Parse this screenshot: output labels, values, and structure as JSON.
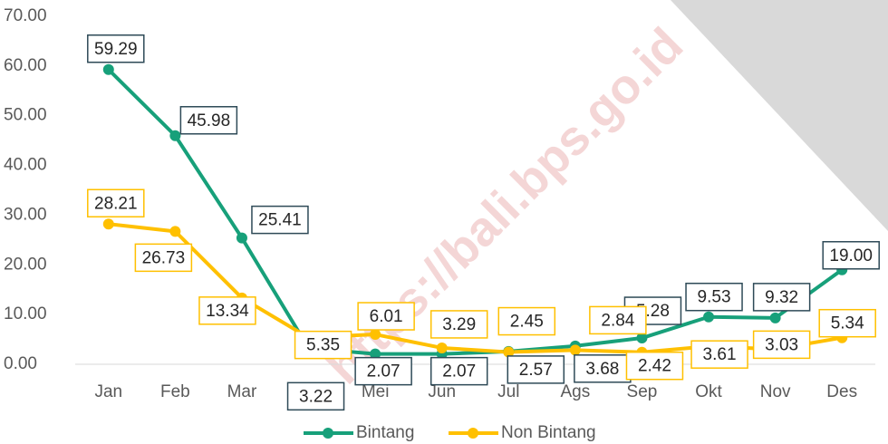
{
  "chart_data": {
    "type": "line",
    "watermark": "https://bali.bps.go.id",
    "categories": [
      "Jan",
      "Feb",
      "Mar",
      "Apr",
      "Mei",
      "Jun",
      "Jul",
      "Ags",
      "Sep",
      "Okt",
      "Nov",
      "Des"
    ],
    "series": [
      {
        "name": "Bintang",
        "color": "#17a07a",
        "values": [
          59.29,
          45.98,
          25.41,
          3.22,
          2.07,
          2.07,
          2.57,
          3.68,
          5.28,
          9.53,
          9.32,
          19.0
        ],
        "value_labels": [
          "59.29",
          "45.98",
          "25.41",
          "3.22",
          "2.07",
          "2.07",
          "2.57",
          "3.68",
          "5.28",
          "9.53",
          "9.32",
          "19.00"
        ]
      },
      {
        "name": "Non Bintang",
        "color": "#ffc000",
        "values": [
          28.21,
          26.73,
          13.34,
          5.35,
          6.01,
          3.29,
          2.45,
          2.84,
          2.42,
          3.61,
          3.03,
          5.34
        ],
        "value_labels": [
          "28.21",
          "26.73",
          "13.34",
          "5.35",
          "6.01",
          "3.29",
          "2.45",
          "2.84",
          "2.42",
          "3.61",
          "3.03",
          "5.34"
        ]
      }
    ],
    "ylim": [
      0,
      70
    ],
    "yticks": [
      {
        "value": 0,
        "label": "0.00"
      },
      {
        "value": 10,
        "label": "10.00"
      },
      {
        "value": 20,
        "label": "20.00"
      },
      {
        "value": 30,
        "label": "30.00"
      },
      {
        "value": 40,
        "label": "40.00"
      },
      {
        "value": 50,
        "label": "50.00"
      },
      {
        "value": 60,
        "label": "60.00"
      },
      {
        "value": 70,
        "label": "70.00"
      }
    ],
    "legend": "bottom"
  }
}
